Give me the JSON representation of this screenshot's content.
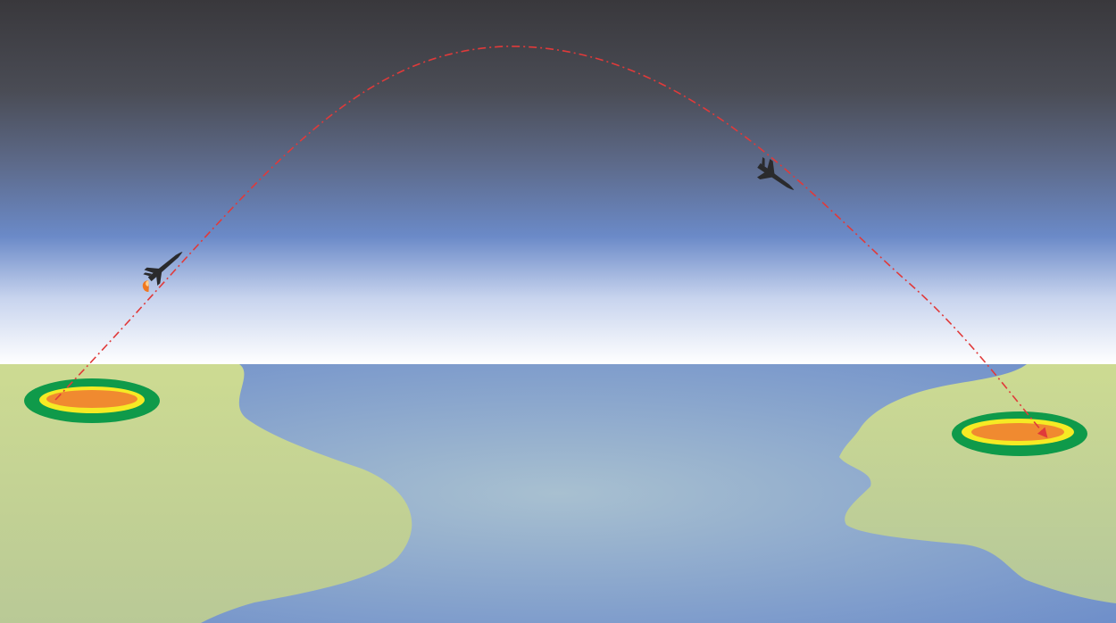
{
  "scene": {
    "sky_colors": {
      "top": "#39383c",
      "mid": "#5a6480",
      "band": "#6b8ac8",
      "horizon": "#ffffff"
    },
    "sea_colors": {
      "center": "#a6bfd0",
      "edge": "#6f8fca"
    },
    "land_color": "#c6d690",
    "trajectory_color": "#e03a3a",
    "zone_colors": {
      "outer": "#0f9a4a",
      "middle": "#f6ea24",
      "inner": "#f08a30"
    }
  },
  "elements": {
    "launch_vehicle_icon": "space-plane-icon",
    "reentry_vehicle_icon": "space-plane-icon",
    "launch_site": "target-zone",
    "landing_site": "target-zone"
  }
}
